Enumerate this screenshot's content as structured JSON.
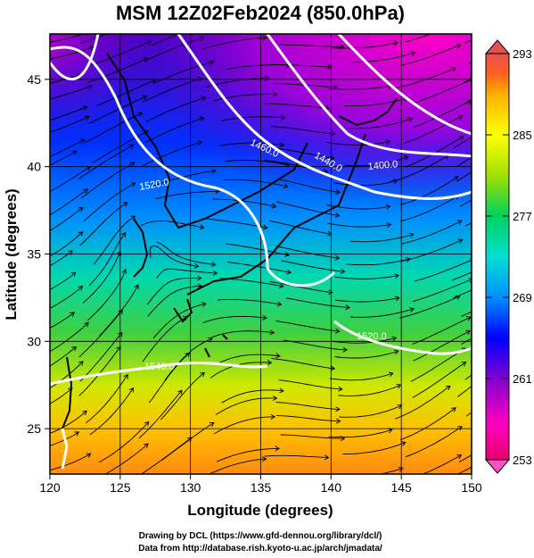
{
  "title": "MSM 12Z02Feb2024 (850.0hPa)",
  "map": {
    "xlabel": "Longitude (degrees)",
    "ylabel": "Latitude  (degrees)",
    "lon_range": [
      120,
      150
    ],
    "lat_range": [
      22.4,
      47.6
    ],
    "x_ticks": [
      "120",
      "125",
      "130",
      "135",
      "140",
      "145",
      "150"
    ],
    "y_ticks": [
      "25",
      "30",
      "35",
      "40",
      "45"
    ],
    "contours": [
      {
        "label": "1400.0"
      },
      {
        "label": "1440.0"
      },
      {
        "label": "1460.0"
      },
      {
        "label": "1520.0"
      },
      {
        "label": "1520.0"
      },
      {
        "label": "1540.0"
      }
    ]
  },
  "colorbar": {
    "ticks": [
      "293",
      "285",
      "277",
      "269",
      "261",
      "253"
    ],
    "min": 253,
    "max": 293,
    "colors": [
      "#e8006a",
      "#ff00c0",
      "#8000d0",
      "#0000ff",
      "#0090ff",
      "#00e0d0",
      "#00d060",
      "#a0e000",
      "#ffff00",
      "#ffb000",
      "#ff6020",
      "#e85050"
    ]
  },
  "credits": [
    "Drawing by DCL (https://www.gfd-dennou.org/library/dcl/)",
    "Data from http://database.rish.kyoto-u.ac.jp/arch/jmadata/"
  ]
}
